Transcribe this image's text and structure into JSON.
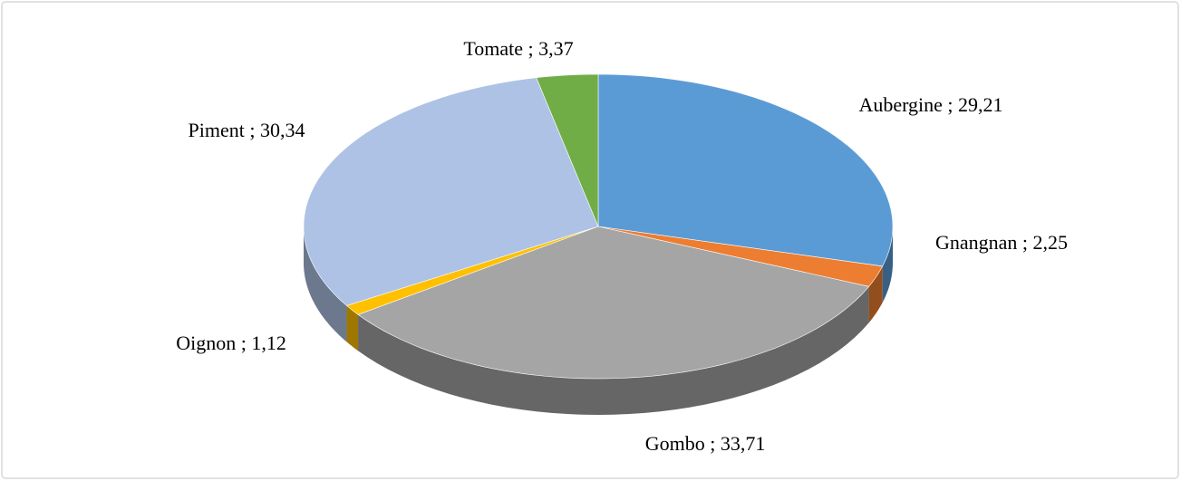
{
  "chart_data": {
    "type": "pie",
    "categories": [
      "Aubergine",
      "Gnangnan",
      "Gombo",
      "Oignon",
      "Piment",
      "Tomate"
    ],
    "values": [
      29.21,
      2.25,
      33.71,
      1.12,
      30.34,
      3.37
    ],
    "value_labels": [
      "29,21",
      "2,25",
      "33,71",
      "1,12",
      "30,34",
      "3,37"
    ],
    "label_separator": " ; ",
    "colors": [
      "#5b9bd5",
      "#ed7d31",
      "#a5a5a5",
      "#ffc000",
      "#adc2e4",
      "#70ad47"
    ]
  }
}
